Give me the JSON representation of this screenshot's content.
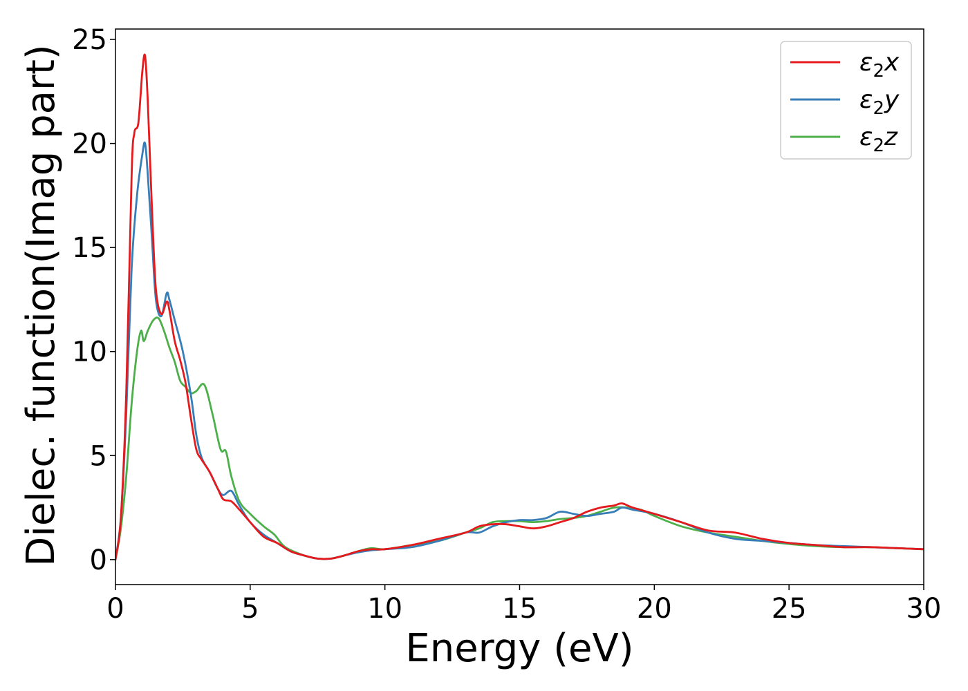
{
  "chart_data": {
    "type": "line",
    "xlabel": "Energy (eV)",
    "ylabel": "Dielec. function(Imag part)",
    "xlim": [
      0,
      30
    ],
    "ylim": [
      -1.2,
      25.5
    ],
    "xticks": [
      0,
      5,
      10,
      15,
      20,
      25,
      30
    ],
    "yticks": [
      0,
      5,
      10,
      15,
      20,
      25
    ],
    "grid": false,
    "legend_position": "top-right",
    "series": [
      {
        "name": "ε2x",
        "legend_base": "ε",
        "legend_sub": "2",
        "legend_suffix": "x",
        "color": "#e41a1c",
        "x": [
          0,
          0.2,
          0.4,
          0.6,
          0.7,
          0.85,
          1.0,
          1.1,
          1.2,
          1.35,
          1.5,
          1.7,
          1.9,
          2.0,
          2.2,
          2.4,
          2.6,
          2.8,
          3.0,
          3.2,
          3.5,
          3.8,
          4.0,
          4.3,
          4.6,
          5.0,
          5.5,
          6.0,
          6.5,
          7.0,
          7.5,
          8.0,
          8.5,
          9.0,
          9.5,
          10.0,
          11.0,
          12.0,
          13.0,
          13.5,
          14.0,
          14.5,
          15.0,
          15.5,
          16.0,
          16.5,
          17.0,
          17.5,
          18.0,
          18.5,
          18.8,
          19.2,
          20.0,
          21.0,
          22.0,
          23.0,
          24.0,
          25.0,
          26.0,
          27.0,
          28.0,
          29.0,
          30.0
        ],
        "y": [
          0,
          2.0,
          8.0,
          18.5,
          20.5,
          21.0,
          23.5,
          24.2,
          22.0,
          17.0,
          13.0,
          11.8,
          12.4,
          12.0,
          10.5,
          9.6,
          8.5,
          6.8,
          5.3,
          4.8,
          4.2,
          3.4,
          2.9,
          2.8,
          2.4,
          1.8,
          1.1,
          0.8,
          0.4,
          0.2,
          0.05,
          0.05,
          0.2,
          0.4,
          0.5,
          0.5,
          0.7,
          1.0,
          1.3,
          1.6,
          1.7,
          1.7,
          1.6,
          1.5,
          1.6,
          1.8,
          2.0,
          2.3,
          2.5,
          2.6,
          2.7,
          2.5,
          2.2,
          1.8,
          1.4,
          1.3,
          1.0,
          0.8,
          0.7,
          0.6,
          0.6,
          0.55,
          0.5
        ]
      },
      {
        "name": "ε2y",
        "legend_base": "ε",
        "legend_sub": "2",
        "legend_suffix": "y",
        "color": "#377eb8",
        "x": [
          0,
          0.2,
          0.4,
          0.6,
          0.8,
          1.0,
          1.1,
          1.2,
          1.35,
          1.5,
          1.7,
          1.9,
          2.0,
          2.2,
          2.5,
          2.8,
          3.0,
          3.2,
          3.5,
          3.8,
          4.0,
          4.3,
          4.6,
          5.0,
          5.5,
          6.0,
          6.5,
          7.0,
          7.5,
          8.0,
          8.5,
          9.0,
          9.5,
          10.0,
          11.0,
          12.0,
          13.0,
          13.5,
          14.0,
          14.5,
          15.0,
          15.5,
          16.0,
          16.5,
          17.0,
          17.5,
          18.0,
          18.5,
          18.8,
          19.2,
          20.0,
          21.0,
          22.0,
          23.0,
          24.0,
          25.0,
          26.0,
          27.0,
          28.0,
          29.0,
          30.0
        ],
        "y": [
          0,
          2.0,
          7.0,
          14.0,
          17.5,
          19.5,
          20.0,
          18.5,
          15.5,
          12.5,
          11.7,
          12.8,
          12.5,
          11.5,
          10.0,
          7.9,
          6.0,
          4.9,
          4.2,
          3.4,
          3.1,
          3.3,
          2.6,
          1.8,
          1.2,
          0.8,
          0.4,
          0.2,
          0.05,
          0.05,
          0.2,
          0.35,
          0.45,
          0.5,
          0.6,
          0.9,
          1.3,
          1.3,
          1.6,
          1.8,
          1.9,
          1.9,
          2.0,
          2.3,
          2.2,
          2.1,
          2.2,
          2.3,
          2.5,
          2.4,
          2.2,
          1.8,
          1.3,
          1.0,
          0.9,
          0.8,
          0.7,
          0.65,
          0.6,
          0.55,
          0.5
        ]
      },
      {
        "name": "ε2z",
        "legend_base": "ε",
        "legend_sub": "2",
        "legend_suffix": "z",
        "color": "#4daf4a",
        "x": [
          0,
          0.2,
          0.4,
          0.6,
          0.8,
          0.95,
          1.05,
          1.2,
          1.4,
          1.6,
          1.8,
          2.0,
          2.2,
          2.4,
          2.6,
          2.8,
          3.0,
          3.3,
          3.6,
          3.9,
          4.1,
          4.3,
          4.6,
          5.0,
          5.5,
          5.9,
          6.3,
          7.0,
          7.5,
          8.0,
          8.5,
          9.0,
          9.5,
          10.0,
          11.0,
          12.0,
          13.0,
          13.5,
          14.0,
          14.5,
          15.0,
          15.5,
          16.0,
          16.5,
          17.0,
          17.5,
          18.0,
          18.5,
          19.0,
          19.5,
          20.0,
          21.0,
          22.0,
          23.0,
          24.0,
          25.0,
          26.0,
          27.0,
          28.0,
          29.0,
          30.0
        ],
        "y": [
          0,
          1.5,
          4.0,
          7.5,
          10.0,
          11.0,
          10.5,
          11.0,
          11.5,
          11.6,
          11.0,
          10.2,
          9.5,
          8.6,
          8.3,
          8.0,
          8.1,
          8.4,
          7.0,
          5.3,
          5.2,
          4.0,
          2.8,
          2.2,
          1.6,
          1.2,
          0.6,
          0.2,
          0.05,
          0.05,
          0.2,
          0.4,
          0.55,
          0.5,
          0.7,
          0.9,
          1.3,
          1.5,
          1.8,
          1.85,
          1.85,
          1.8,
          1.85,
          1.95,
          2.0,
          2.1,
          2.3,
          2.5,
          2.5,
          2.4,
          2.1,
          1.6,
          1.3,
          1.1,
          0.9,
          0.75,
          0.65,
          0.6,
          0.6,
          0.55,
          0.5
        ]
      }
    ]
  }
}
